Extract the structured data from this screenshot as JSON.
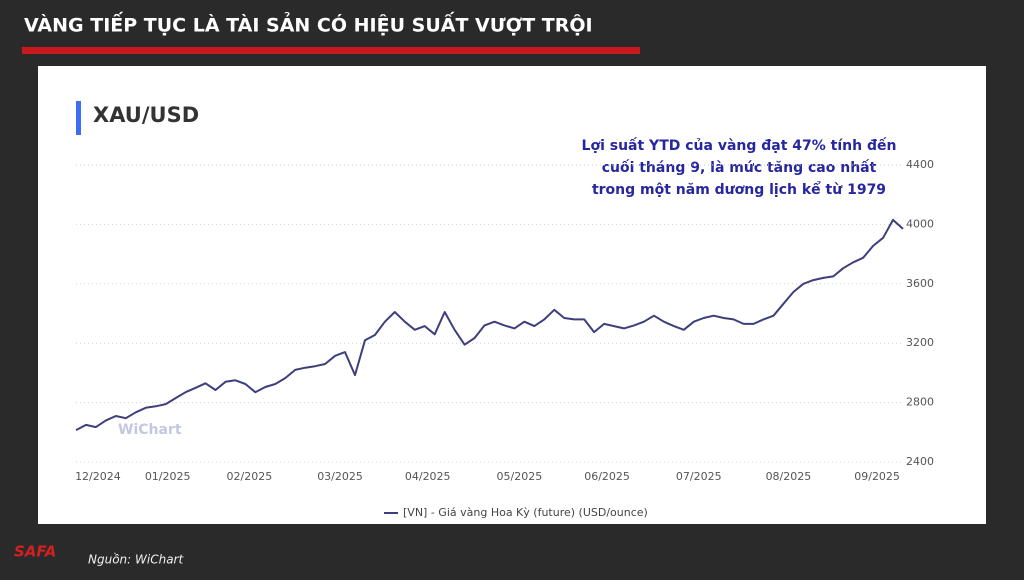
{
  "header": {
    "title": "VÀNG TIẾP TỤC LÀ TÀI SẢN CÓ HIỆU SUẤT VƯỢT TRỘI"
  },
  "footer": {
    "logo": "SAFA",
    "source": "Nguồn: WiChart"
  },
  "chart_data": {
    "type": "line",
    "title": "XAU/USD",
    "watermark": "WiChart",
    "annotation": [
      "Lợi suất YTD của vàng đạt 47% tính đến",
      "cuối tháng 9, là mức tăng cao nhất",
      "trong một năm dương lịch kể từ 1979"
    ],
    "xlim": [
      0,
      83
    ],
    "xticks": [
      {
        "value": 2.2,
        "label": "12/2024"
      },
      {
        "value": 9.2,
        "label": "01/2025"
      },
      {
        "value": 17.4,
        "label": "02/2025"
      },
      {
        "value": 26.5,
        "label": "03/2025"
      },
      {
        "value": 35.3,
        "label": "04/2025"
      },
      {
        "value": 44.5,
        "label": "05/2025"
      },
      {
        "value": 53.3,
        "label": "06/2025"
      },
      {
        "value": 62.5,
        "label": "07/2025"
      },
      {
        "value": 71.5,
        "label": "08/2025"
      },
      {
        "value": 80.4,
        "label": "09/2025"
      }
    ],
    "ylim": [
      2400,
      4400
    ],
    "yticks": [
      2400,
      2800,
      3200,
      3600,
      4000,
      4400
    ],
    "grid": true,
    "y_axis_side": "right",
    "series": [
      {
        "name": "[VN] - Giá vàng Hoa Kỳ (future) (USD/ounce)",
        "color": "#3d3f7c",
        "values": [
          2615,
          2650,
          2635,
          2680,
          2710,
          2695,
          2735,
          2765,
          2775,
          2790,
          2830,
          2870,
          2900,
          2930,
          2885,
          2940,
          2950,
          2925,
          2870,
          2905,
          2925,
          2965,
          3020,
          3035,
          3045,
          3060,
          3115,
          3140,
          2985,
          3220,
          3255,
          3345,
          3410,
          3345,
          3290,
          3315,
          3260,
          3410,
          3290,
          3190,
          3235,
          3320,
          3345,
          3320,
          3300,
          3345,
          3315,
          3360,
          3425,
          3370,
          3360,
          3360,
          3275,
          3330,
          3315,
          3300,
          3320,
          3345,
          3385,
          3345,
          3315,
          3290,
          3345,
          3370,
          3385,
          3370,
          3360,
          3330,
          3330,
          3360,
          3385,
          3465,
          3545,
          3600,
          3625,
          3640,
          3650,
          3705,
          3745,
          3775,
          3855,
          3910,
          4030,
          3970
        ]
      }
    ]
  }
}
